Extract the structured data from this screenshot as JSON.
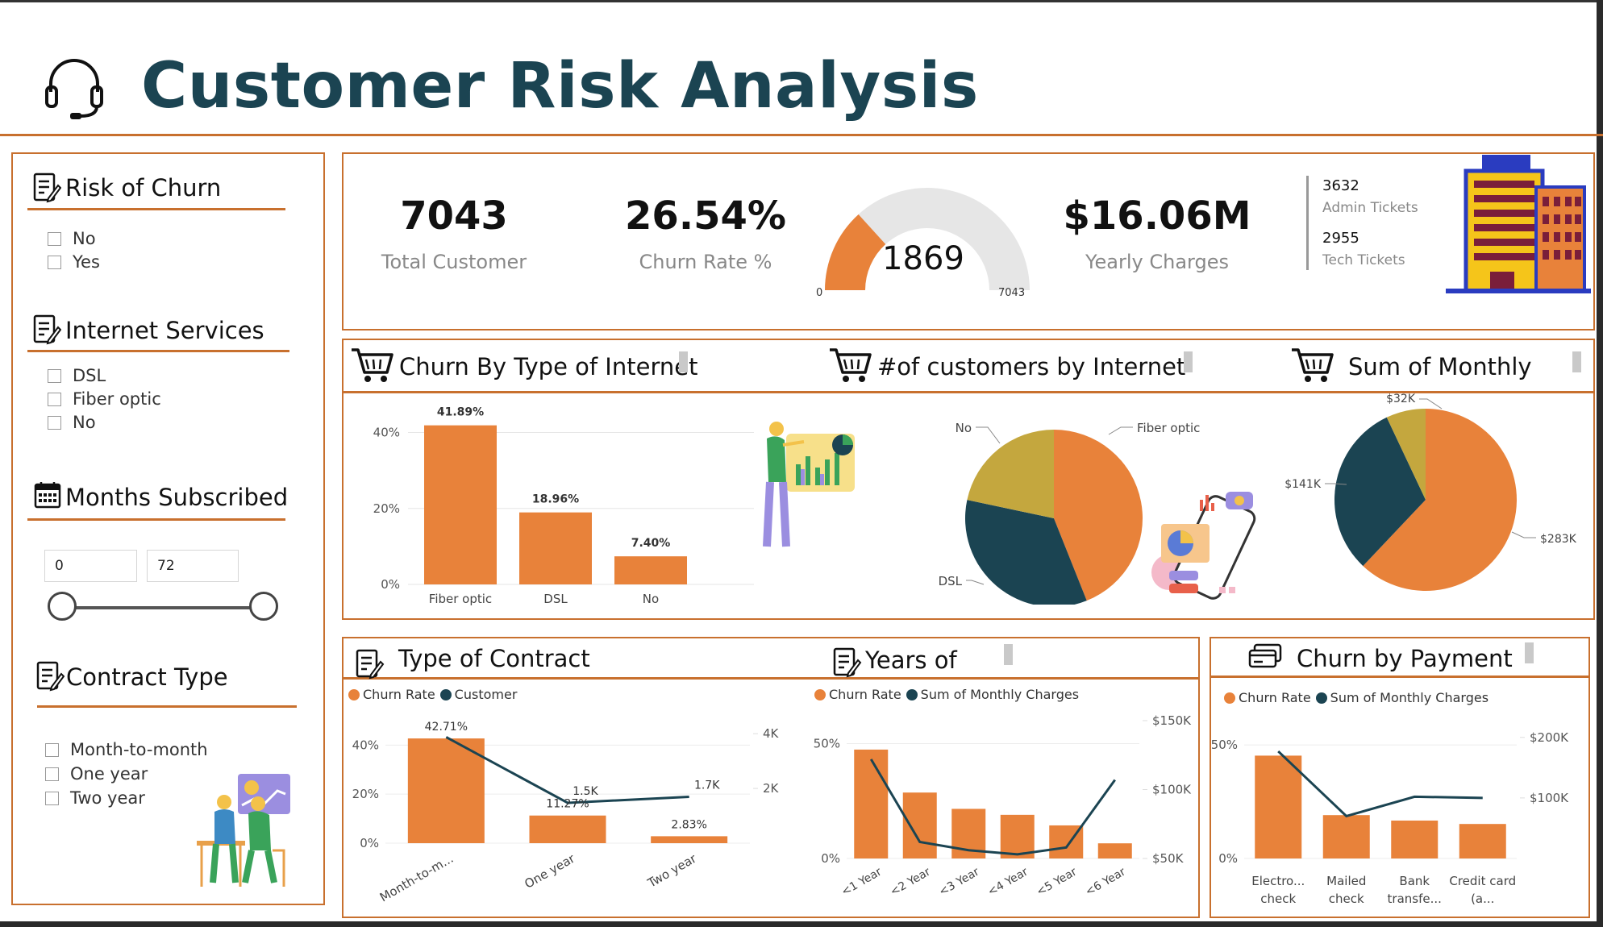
{
  "header": {
    "title": "Customer Risk Analysis"
  },
  "colors": {
    "orange": "#E8823A",
    "teal": "#1B4452",
    "olive": "#C4A73E",
    "rule": "#C8702E",
    "title": "#1B4452"
  },
  "filters": {
    "risk_of_churn": {
      "title": "Risk of Churn",
      "icon": "edit-list-icon",
      "options": [
        "No",
        "Yes"
      ]
    },
    "internet_services": {
      "title": "Internet Services",
      "icon": "edit-list-icon",
      "options": [
        "DSL",
        "Fiber optic",
        "No"
      ]
    },
    "months_subscribed": {
      "title": "Months Subscribed",
      "icon": "calendar-icon",
      "min": "0",
      "max": "72"
    },
    "contract_type": {
      "title": "Contract Type",
      "icon": "edit-list-icon",
      "options": [
        "Month-to-month",
        "One year",
        "Two year"
      ]
    }
  },
  "kpis": {
    "total_customer": {
      "value": "7043",
      "label": "Total Customer"
    },
    "churn_rate": {
      "value": "26.54%",
      "label": "Churn Rate %"
    },
    "gauge": {
      "value": "1869",
      "min": "0",
      "max": "7043",
      "fraction": 0.2654
    },
    "yearly_charges": {
      "value": "$16.06M",
      "label": "Yearly Charges"
    },
    "tickets": {
      "admin_value": "3632",
      "admin_label": "Admin Tickets",
      "tech_value": "2955",
      "tech_label": "Tech Tickets"
    }
  },
  "chart_titles": {
    "churn_internet": "Churn By Type of Internet",
    "customers_internet": "#of customers by Internet",
    "sum_monthly": "Sum of Monthly",
    "contract": "Type of Contract",
    "years": "Years of",
    "payment": "Churn by Payment"
  },
  "chart_data": [
    {
      "id": "churn_by_internet",
      "type": "bar",
      "categories": [
        "Fiber optic",
        "DSL",
        "No"
      ],
      "values": [
        41.89,
        18.96,
        7.4
      ],
      "data_labels": [
        "41.89%",
        "18.96%",
        "7.40%"
      ],
      "y_ticks": [
        "0%",
        "20%",
        "40%"
      ],
      "ylim": [
        0,
        45
      ]
    },
    {
      "id": "customers_by_internet",
      "type": "pie",
      "labels": [
        "Fiber optic",
        "DSL",
        "No"
      ],
      "values": [
        3096,
        2421,
        1526
      ],
      "colors": [
        "#E8823A",
        "#1B4452",
        "#C4A73E"
      ]
    },
    {
      "id": "sum_of_monthly",
      "type": "pie",
      "labels": [
        "$283K",
        "$141K",
        "$32K"
      ],
      "values": [
        283,
        141,
        32
      ],
      "colors": [
        "#E8823A",
        "#1B4452",
        "#C4A73E"
      ]
    },
    {
      "id": "type_of_contract",
      "type": "bar",
      "legend": [
        "Churn Rate",
        "Customer"
      ],
      "categories": [
        "Month-to-m...",
        "One year",
        "Two year"
      ],
      "series": [
        {
          "name": "Churn Rate",
          "values": [
            42.71,
            11.27,
            2.83
          ],
          "labels": [
            "42.71%",
            "11.27%",
            "2.83%"
          ]
        },
        {
          "name": "Customer",
          "values": [
            3875,
            1473,
            1695
          ],
          "labels": [
            "",
            "1.5K",
            "1.7K"
          ]
        }
      ],
      "y_ticks": [
        "0%",
        "20%",
        "40%"
      ],
      "y2_ticks": [
        "2K",
        "4K"
      ],
      "ylim": [
        0,
        48
      ],
      "y2lim": [
        0,
        4300
      ]
    },
    {
      "id": "years_of",
      "type": "bar",
      "legend": [
        "Churn Rate",
        "Sum of Monthly Charges"
      ],
      "categories": [
        "<1 Year",
        "<2 Year",
        "<3 Year",
        "<4 Year",
        "<5 Year",
        "<6 Year"
      ],
      "series": [
        {
          "name": "Churn Rate",
          "values": [
            47.4,
            28.7,
            21.6,
            19.0,
            14.4,
            6.6
          ]
        },
        {
          "name": "Sum of Monthly Charges",
          "values": [
            122000,
            62000,
            56000,
            53000,
            58000,
            107000
          ]
        }
      ],
      "y_ticks": [
        "0%",
        "50%"
      ],
      "y2_ticks": [
        "$50K",
        "$100K",
        "$150K"
      ],
      "ylim": [
        0,
        60
      ],
      "y2lim": [
        50000,
        150000
      ]
    },
    {
      "id": "churn_by_payment",
      "type": "bar",
      "legend": [
        "Churn Rate",
        "Sum of Monthly Charges"
      ],
      "categories": [
        "Electro... check",
        "Mailed check",
        "Bank transfe...",
        "Credit card (a..."
      ],
      "series": [
        {
          "name": "Churn Rate",
          "values": [
            45.3,
            19.1,
            16.7,
            15.2
          ]
        },
        {
          "name": "Sum of Monthly Charges",
          "values": [
            177000,
            70000,
            102000,
            100000
          ]
        }
      ],
      "y_ticks": [
        "0%",
        "50%"
      ],
      "y2_ticks": [
        "$100K",
        "$200K"
      ],
      "ylim": [
        0,
        60
      ],
      "y2lim": [
        0,
        225000
      ]
    }
  ]
}
